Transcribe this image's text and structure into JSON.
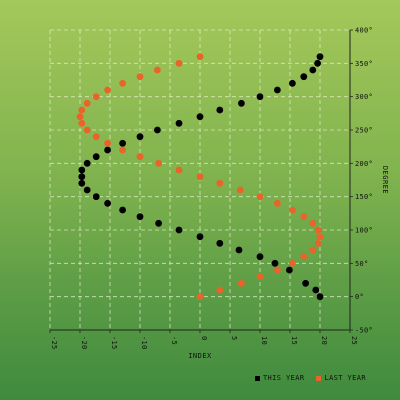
{
  "chart_data": {
    "type": "scatter",
    "xlabel": "INDEX",
    "ylabel": "DEGREE",
    "xlim": [
      -25,
      25
    ],
    "ylim": [
      -50,
      400
    ],
    "xticks": [
      -25,
      -20,
      -15,
      -10,
      -5,
      0,
      5,
      10,
      15,
      20,
      25
    ],
    "yticks": [
      -50,
      0,
      50,
      100,
      150,
      200,
      250,
      300,
      350,
      400
    ],
    "xtick_labels": [
      "-25",
      "-20",
      "-15",
      "-10",
      "-5",
      "0",
      "5",
      "10",
      "15",
      "20",
      "25"
    ],
    "ytick_labels": [
      "-50°",
      "0°",
      "50°",
      "100°",
      "150°",
      "200°",
      "250°",
      "300°",
      "350°",
      "400°"
    ],
    "grid": true,
    "legend_position": "bottom-right",
    "series": [
      {
        "name": "THIS YEAR",
        "color": "#000000",
        "points": [
          [
            20,
            0
          ],
          [
            19.3,
            10
          ],
          [
            17.6,
            20
          ],
          [
            14.9,
            40
          ],
          [
            12.5,
            50
          ],
          [
            10,
            60
          ],
          [
            6.5,
            70
          ],
          [
            3.3,
            80
          ],
          [
            0,
            90
          ],
          [
            -3.5,
            100
          ],
          [
            -6.9,
            110
          ],
          [
            -10,
            120
          ],
          [
            -12.9,
            130
          ],
          [
            -15.4,
            140
          ],
          [
            -17.3,
            150
          ],
          [
            -18.8,
            160
          ],
          [
            -19.7,
            170
          ],
          [
            -19.7,
            180
          ],
          [
            -19.7,
            190
          ],
          [
            -18.8,
            200
          ],
          [
            -17.3,
            210
          ],
          [
            -15.4,
            220
          ],
          [
            -12.9,
            230
          ],
          [
            -10,
            240
          ],
          [
            -7.1,
            250
          ],
          [
            -3.5,
            260
          ],
          [
            0,
            270
          ],
          [
            3.3,
            280
          ],
          [
            6.9,
            290
          ],
          [
            10,
            300
          ],
          [
            12.9,
            310
          ],
          [
            15.4,
            320
          ],
          [
            17.3,
            330
          ],
          [
            18.8,
            340
          ],
          [
            19.6,
            350
          ],
          [
            20,
            360
          ]
        ]
      },
      {
        "name": "LAST YEAR",
        "color": "#e8642a",
        "points": [
          [
            0,
            0
          ],
          [
            3.3,
            10
          ],
          [
            6.9,
            20
          ],
          [
            10,
            30
          ],
          [
            12.9,
            40
          ],
          [
            15.4,
            50
          ],
          [
            17.3,
            60
          ],
          [
            18.8,
            70
          ],
          [
            19.7,
            80
          ],
          [
            20,
            90
          ],
          [
            19.7,
            100
          ],
          [
            18.8,
            110
          ],
          [
            17.3,
            120
          ],
          [
            15.4,
            130
          ],
          [
            12.9,
            140
          ],
          [
            10,
            150
          ],
          [
            6.7,
            160
          ],
          [
            3.3,
            170
          ],
          [
            0,
            180
          ],
          [
            -3.5,
            190
          ],
          [
            -6.9,
            200
          ],
          [
            -10,
            210
          ],
          [
            -12.9,
            220
          ],
          [
            -15.4,
            230
          ],
          [
            -17.3,
            240
          ],
          [
            -18.8,
            250
          ],
          [
            -19.7,
            260
          ],
          [
            -20,
            270
          ],
          [
            -19.7,
            280
          ],
          [
            -18.8,
            290
          ],
          [
            -17.3,
            300
          ],
          [
            -15.4,
            310
          ],
          [
            -12.9,
            320
          ],
          [
            -10,
            330
          ],
          [
            -7.1,
            340
          ],
          [
            -3.5,
            350
          ],
          [
            0,
            360
          ]
        ]
      }
    ]
  }
}
